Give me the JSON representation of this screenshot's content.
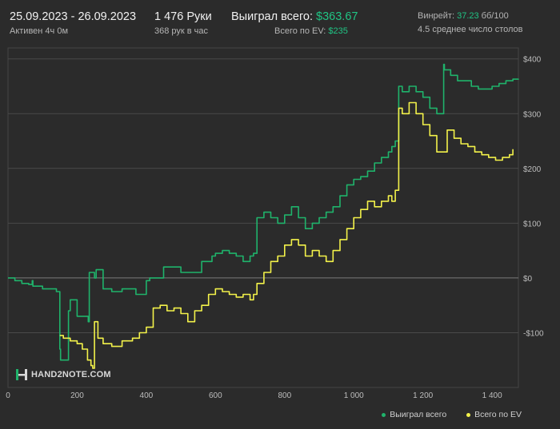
{
  "header": {
    "date_range": "25.09.2023 - 26.09.2023",
    "active_time": "Активен 4ч 0м",
    "hands": "1 476 Руки",
    "hands_per_hour": "368 рук в час",
    "won_label": "Выиграл всего: ",
    "won_value": "$363.67",
    "ev_label": "Всего по EV: ",
    "ev_value": "$235",
    "winrate_label": "Винрейт: ",
    "winrate_value": "37.23",
    "winrate_unit": " бб/100",
    "avg_tables": "4.5 среднее число столов"
  },
  "logo_text": "HAND2NOTE.COM",
  "colors": {
    "background": "#2b2b2b",
    "won_series": "#1fb36b",
    "ev_series": "#f3f24a",
    "accent_text": "#20c484",
    "grid": "#4a4a4a"
  },
  "chart_data": {
    "type": "line",
    "x_ticks": [
      0,
      200,
      400,
      600,
      800,
      1000,
      1200,
      1400
    ],
    "x_tick_labels": [
      "0",
      "200",
      "400",
      "600",
      "800",
      "1 000",
      "1 200",
      "1 400"
    ],
    "y_ticks": [
      -100,
      0,
      100,
      200,
      300,
      400
    ],
    "y_tick_labels": [
      "-$100",
      "$0",
      "$100",
      "$200",
      "$300",
      "$400"
    ],
    "xlim": [
      0,
      1476
    ],
    "ylim": [
      -200,
      420
    ],
    "grid": true,
    "legend_position": "bottom-right",
    "series": [
      {
        "name": "Выиграл всего",
        "color": "#1fb36b",
        "x": [
          0,
          20,
          40,
          60,
          70,
          72,
          100,
          140,
          150,
          152,
          175,
          180,
          200,
          232,
          235,
          250,
          255,
          275,
          300,
          330,
          360,
          370,
          400,
          410,
          450,
          500,
          520,
          560,
          590,
          600,
          620,
          640,
          660,
          680,
          700,
          710,
          720,
          740,
          760,
          780,
          800,
          820,
          840,
          860,
          880,
          900,
          920,
          940,
          960,
          980,
          1000,
          1020,
          1040,
          1060,
          1080,
          1100,
          1110,
          1120,
          1130,
          1140,
          1160,
          1180,
          1200,
          1220,
          1240,
          1260,
          1262,
          1280,
          1300,
          1320,
          1340,
          1360,
          1380,
          1400,
          1420,
          1440,
          1460,
          1476
        ],
        "y": [
          0,
          -5,
          -10,
          -12,
          -5,
          -15,
          -20,
          -25,
          -130,
          -150,
          -60,
          -40,
          -70,
          -80,
          10,
          0,
          15,
          -20,
          -25,
          -20,
          -20,
          -30,
          -5,
          0,
          20,
          10,
          10,
          30,
          40,
          45,
          50,
          45,
          40,
          30,
          40,
          45,
          110,
          120,
          110,
          100,
          115,
          130,
          110,
          90,
          100,
          110,
          120,
          130,
          150,
          170,
          180,
          185,
          195,
          210,
          220,
          230,
          240,
          250,
          350,
          340,
          350,
          340,
          330,
          310,
          300,
          390,
          380,
          370,
          360,
          360,
          350,
          345,
          345,
          350,
          355,
          360,
          363,
          363.67
        ],
        "final": 363.67
      },
      {
        "name": "Всего по EV",
        "color": "#f3f24a",
        "x": [
          150,
          160,
          180,
          200,
          215,
          230,
          240,
          245,
          250,
          260,
          275,
          300,
          330,
          360,
          380,
          400,
          420,
          440,
          460,
          480,
          500,
          520,
          540,
          560,
          580,
          600,
          620,
          640,
          660,
          680,
          700,
          710,
          720,
          740,
          760,
          780,
          800,
          820,
          840,
          860,
          880,
          900,
          920,
          940,
          960,
          980,
          1000,
          1020,
          1040,
          1060,
          1080,
          1100,
          1110,
          1120,
          1130,
          1140,
          1160,
          1180,
          1200,
          1220,
          1240,
          1260,
          1270,
          1290,
          1310,
          1330,
          1350,
          1370,
          1390,
          1410,
          1430,
          1450,
          1460
        ],
        "y": [
          -105,
          -110,
          -115,
          -120,
          -130,
          -150,
          -160,
          -165,
          -80,
          -110,
          -120,
          -125,
          -115,
          -110,
          -100,
          -90,
          -55,
          -50,
          -60,
          -55,
          -65,
          -80,
          -60,
          -50,
          -30,
          -20,
          -25,
          -30,
          -35,
          -30,
          -40,
          -30,
          -10,
          10,
          30,
          40,
          60,
          70,
          60,
          40,
          50,
          40,
          30,
          50,
          70,
          90,
          110,
          125,
          140,
          130,
          140,
          150,
          140,
          160,
          310,
          300,
          320,
          300,
          280,
          260,
          230,
          230,
          270,
          255,
          245,
          240,
          230,
          225,
          220,
          215,
          220,
          225,
          235
        ]
      }
    ]
  }
}
